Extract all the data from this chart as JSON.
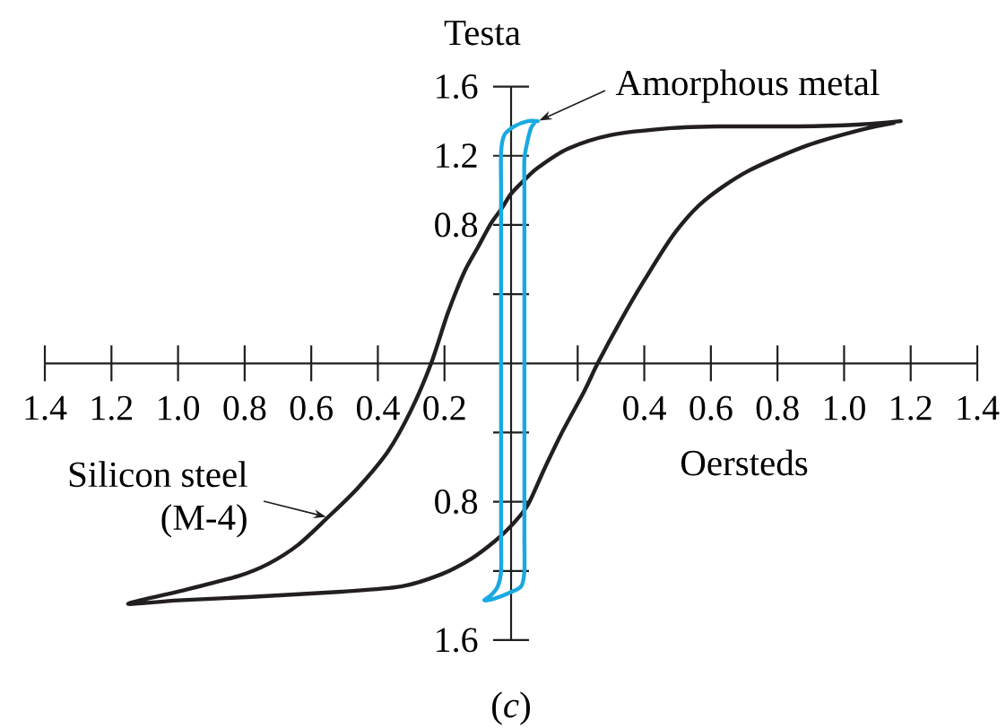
{
  "chart_data": {
    "type": "line",
    "xlabel": "Oersteds",
    "ylabel": "Testa",
    "annotations": [
      "(*c*)",
      {
        "text": "Amorphous metal",
        "x": 0.08,
        "y": 1.4
      },
      {
        "text": "Silicon steel (M-4)",
        "x": -0.55,
        "y": -0.89
      }
    ],
    "xlim": [
      -1.4,
      1.4
    ],
    "ylim": [
      -1.6,
      1.6
    ],
    "xticks": [
      {
        "value": -1.4,
        "label": "1.4"
      },
      {
        "value": -1.2,
        "label": "1.2"
      },
      {
        "value": -1,
        "label": "1.0"
      },
      {
        "value": -0.8,
        "label": "0.8"
      },
      {
        "value": -0.6,
        "label": "0.6"
      },
      {
        "value": -0.4,
        "label": "0.4"
      },
      {
        "value": -0.2,
        "label": "0.2"
      },
      {
        "value": 0.2,
        "label": null
      },
      0.4,
      0.6,
      0.8,
      {
        "value": 1,
        "label": "1.0"
      },
      1.2,
      1.4
    ],
    "yticks": [
      {
        "value": -1.6,
        "label": "1.6"
      },
      {
        "value": -1.2,
        "label": null
      },
      {
        "value": -0.8,
        "label": "0.8"
      },
      {
        "value": -0.4,
        "label": null
      },
      {
        "value": 0.4,
        "label": null
      },
      0.8,
      1.2,
      1.6
    ],
    "series": [
      {
        "color": "#231f20",
        "x": [
          1.17,
          1.04,
          0.86,
          0.62,
          0.48,
          0.3,
          0.17,
          0.08,
          0.04,
          0.0,
          -0.03,
          -0.06,
          -0.1,
          -0.14,
          -0.19,
          -0.24,
          -0.3,
          -0.37,
          -0.46,
          -0.55,
          -0.64,
          -0.73,
          -0.82,
          -1.0,
          -1.15,
          -1.0,
          -0.78,
          -0.51,
          -0.33,
          -0.21,
          -0.12,
          -0.05,
          0.0,
          0.05,
          0.1,
          0.15,
          0.22,
          0.26,
          0.33,
          0.4,
          0.49,
          0.58,
          0.71,
          0.89,
          1.05,
          1.15
        ],
        "values": [
          1.4,
          1.38,
          1.37,
          1.37,
          1.36,
          1.32,
          1.24,
          1.13,
          1.06,
          0.98,
          0.89,
          0.81,
          0.67,
          0.53,
          0.29,
          0.0,
          -0.27,
          -0.51,
          -0.72,
          -0.89,
          -1.05,
          -1.16,
          -1.23,
          -1.32,
          -1.39,
          -1.37,
          -1.35,
          -1.32,
          -1.29,
          -1.22,
          -1.13,
          -1.03,
          -0.94,
          -0.82,
          -0.61,
          -0.41,
          -0.16,
          0.0,
          0.25,
          0.48,
          0.75,
          0.94,
          1.11,
          1.26,
          1.35,
          1.39
        ]
      },
      {
        "color": "#1aa9e1",
        "x": [
          0.08,
          0.05,
          0.01,
          -0.02,
          -0.03,
          -0.03,
          -0.03,
          -0.03,
          -0.03,
          -0.03,
          -0.03,
          -0.04,
          -0.06,
          -0.08,
          -0.05,
          -0.01,
          0.03,
          0.04,
          0.04,
          0.04,
          0.04,
          0.04,
          0.04,
          0.04,
          0.05,
          0.06,
          0.07
        ],
        "values": [
          1.4,
          1.4,
          1.37,
          1.32,
          1.22,
          1.0,
          0.6,
          0.0,
          -0.6,
          -1.0,
          -1.2,
          -1.29,
          -1.34,
          -1.37,
          -1.36,
          -1.33,
          -1.29,
          -1.2,
          -1.0,
          -0.6,
          0.0,
          0.6,
          1.0,
          1.18,
          1.29,
          1.36,
          1.39
        ]
      }
    ]
  }
}
